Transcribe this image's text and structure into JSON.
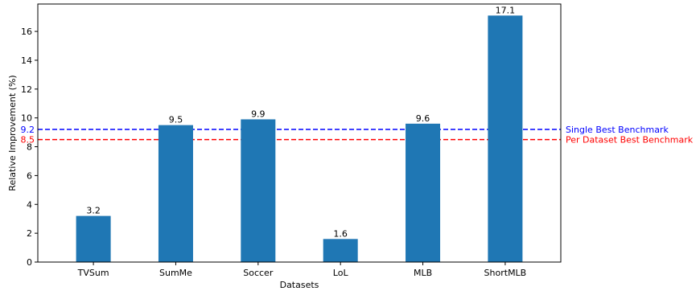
{
  "chart_data": {
    "type": "bar",
    "categories": [
      "TVSum",
      "SumMe",
      "Soccer",
      "LoL",
      "MLB",
      "ShortMLB"
    ],
    "values": [
      3.2,
      9.5,
      9.9,
      1.6,
      9.6,
      17.1
    ],
    "data_labels": [
      "3.2",
      "9.5",
      "9.9",
      "1.6",
      "9.6",
      "17.1"
    ],
    "xlabel": "Datasets",
    "ylabel": "Relative Improvement (%)",
    "ylim": [
      0,
      17.9
    ],
    "yticks": [
      0,
      2,
      4,
      6,
      8,
      10,
      12,
      14,
      16
    ],
    "bar_color": "#1f77b4",
    "grid": false,
    "reference_lines": [
      {
        "value": 9.2,
        "value_label": "9.2",
        "label": "Single Best Benchmark",
        "color": "#0000ff",
        "style": "dashed"
      },
      {
        "value": 8.5,
        "value_label": "8.5",
        "label": "Per Dataset Best Benchmark",
        "color": "#ff0000",
        "style": "dashed"
      }
    ]
  }
}
